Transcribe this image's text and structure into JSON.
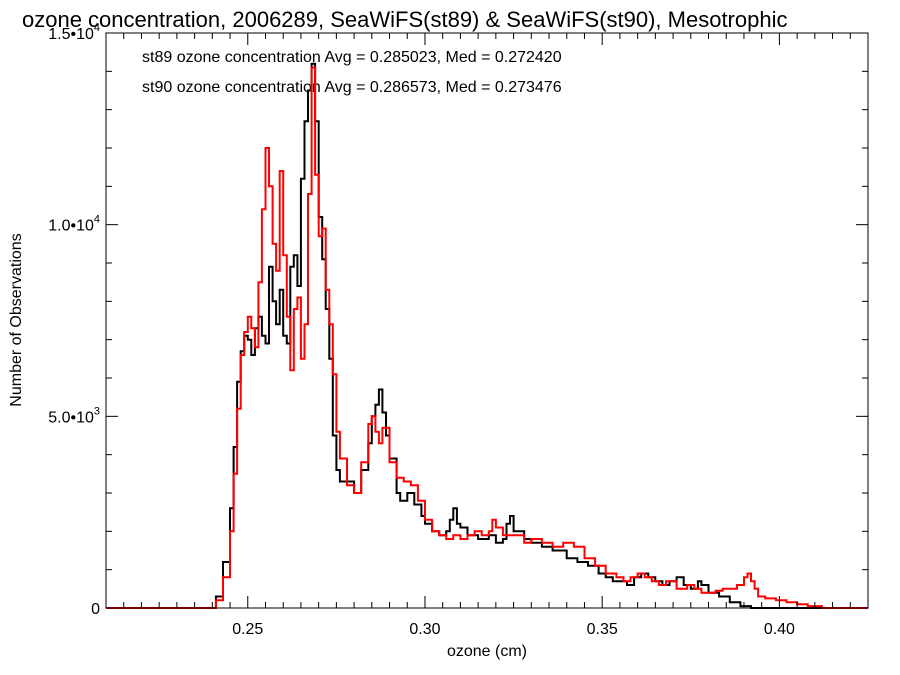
{
  "chart_data": {
    "type": "line",
    "title": "ozone concentration, 2006289, SeaWiFS(st89) & SeaWiFS(st90), Mesotrophic",
    "xlabel": "ozone (cm)",
    "ylabel": "Number of Observations",
    "xlim": [
      0.21,
      0.425
    ],
    "ylim": [
      0,
      15000
    ],
    "x_ticks": [
      {
        "value": 0.25,
        "label": "0.25"
      },
      {
        "value": 0.3,
        "label": "0.30"
      },
      {
        "value": 0.35,
        "label": "0.35"
      },
      {
        "value": 0.4,
        "label": "0.40"
      }
    ],
    "y_ticks": [
      {
        "value": 0,
        "mantissa": "0",
        "exp": ""
      },
      {
        "value": 5000,
        "mantissa": "5.0•10",
        "exp": "3"
      },
      {
        "value": 10000,
        "mantissa": "1.0•10",
        "exp": "4"
      },
      {
        "value": 15000,
        "mantissa": "1.5•10",
        "exp": "4"
      }
    ],
    "annotations": [
      {
        "text": "st89 ozone concentration Avg = 0.285023, Med = 0.272420",
        "color": "#000000"
      },
      {
        "text": "st90 ozone concentration Avg = 0.286573, Med = 0.273476",
        "color": "#ff0000"
      }
    ],
    "series": [
      {
        "color": "#000000",
        "points": [
          [
            0.21,
            0
          ],
          [
            0.238,
            0
          ],
          [
            0.241,
            300
          ],
          [
            0.243,
            1200
          ],
          [
            0.245,
            2600
          ],
          [
            0.246,
            4200
          ],
          [
            0.247,
            5900
          ],
          [
            0.248,
            6700
          ],
          [
            0.249,
            7100
          ],
          [
            0.25,
            7000
          ],
          [
            0.251,
            6600
          ],
          [
            0.252,
            7300
          ],
          [
            0.253,
            7600
          ],
          [
            0.254,
            7100
          ],
          [
            0.255,
            6900
          ],
          [
            0.256,
            8900
          ],
          [
            0.257,
            8000
          ],
          [
            0.258,
            7400
          ],
          [
            0.259,
            8300
          ],
          [
            0.26,
            7100
          ],
          [
            0.261,
            6900
          ],
          [
            0.262,
            8900
          ],
          [
            0.263,
            9200
          ],
          [
            0.264,
            8400
          ],
          [
            0.265,
            11200
          ],
          [
            0.266,
            12700
          ],
          [
            0.267,
            13500
          ],
          [
            0.268,
            14200
          ],
          [
            0.269,
            12700
          ],
          [
            0.27,
            10200
          ],
          [
            0.271,
            9100
          ],
          [
            0.272,
            7800
          ],
          [
            0.273,
            6500
          ],
          [
            0.274,
            4500
          ],
          [
            0.275,
            3600
          ],
          [
            0.276,
            3300
          ],
          [
            0.278,
            3300
          ],
          [
            0.28,
            3000
          ],
          [
            0.282,
            3600
          ],
          [
            0.284,
            4300
          ],
          [
            0.285,
            5000
          ],
          [
            0.286,
            5300
          ],
          [
            0.287,
            5700
          ],
          [
            0.288,
            5100
          ],
          [
            0.289,
            4500
          ],
          [
            0.29,
            3900
          ],
          [
            0.292,
            3000
          ],
          [
            0.293,
            2800
          ],
          [
            0.295,
            3000
          ],
          [
            0.297,
            2700
          ],
          [
            0.299,
            2400
          ],
          [
            0.3,
            2200
          ],
          [
            0.302,
            2000
          ],
          [
            0.304,
            1900
          ],
          [
            0.306,
            2000
          ],
          [
            0.307,
            2300
          ],
          [
            0.308,
            2600
          ],
          [
            0.309,
            2200
          ],
          [
            0.31,
            2100
          ],
          [
            0.312,
            1900
          ],
          [
            0.315,
            1800
          ],
          [
            0.318,
            1900
          ],
          [
            0.32,
            1700
          ],
          [
            0.322,
            1800
          ],
          [
            0.323,
            2200
          ],
          [
            0.324,
            2400
          ],
          [
            0.325,
            2000
          ],
          [
            0.328,
            1800
          ],
          [
            0.33,
            1700
          ],
          [
            0.333,
            1600
          ],
          [
            0.336,
            1500
          ],
          [
            0.34,
            1300
          ],
          [
            0.343,
            1200
          ],
          [
            0.346,
            1100
          ],
          [
            0.349,
            900
          ],
          [
            0.351,
            800
          ],
          [
            0.353,
            700
          ],
          [
            0.355,
            700
          ],
          [
            0.357,
            600
          ],
          [
            0.359,
            800
          ],
          [
            0.361,
            900
          ],
          [
            0.363,
            800
          ],
          [
            0.365,
            700
          ],
          [
            0.367,
            600
          ],
          [
            0.369,
            700
          ],
          [
            0.371,
            800
          ],
          [
            0.373,
            600
          ],
          [
            0.375,
            500
          ],
          [
            0.377,
            700
          ],
          [
            0.378,
            600
          ],
          [
            0.38,
            400
          ],
          [
            0.383,
            300
          ],
          [
            0.386,
            150
          ],
          [
            0.389,
            50
          ],
          [
            0.392,
            0
          ],
          [
            0.425,
            0
          ]
        ]
      },
      {
        "color": "#ff0000",
        "points": [
          [
            0.21,
            0
          ],
          [
            0.239,
            0
          ],
          [
            0.241,
            200
          ],
          [
            0.243,
            800
          ],
          [
            0.245,
            2000
          ],
          [
            0.246,
            3500
          ],
          [
            0.247,
            5200
          ],
          [
            0.248,
            6600
          ],
          [
            0.249,
            7200
          ],
          [
            0.25,
            7600
          ],
          [
            0.251,
            7300
          ],
          [
            0.252,
            6800
          ],
          [
            0.253,
            8500
          ],
          [
            0.254,
            10400
          ],
          [
            0.255,
            12000
          ],
          [
            0.256,
            11000
          ],
          [
            0.257,
            9500
          ],
          [
            0.258,
            8800
          ],
          [
            0.259,
            11400
          ],
          [
            0.26,
            9200
          ],
          [
            0.261,
            7600
          ],
          [
            0.262,
            6200
          ],
          [
            0.263,
            7800
          ],
          [
            0.264,
            8100
          ],
          [
            0.265,
            6500
          ],
          [
            0.266,
            7400
          ],
          [
            0.267,
            10800
          ],
          [
            0.268,
            14100
          ],
          [
            0.269,
            11300
          ],
          [
            0.27,
            9700
          ],
          [
            0.271,
            9900
          ],
          [
            0.272,
            8300
          ],
          [
            0.273,
            7400
          ],
          [
            0.274,
            6100
          ],
          [
            0.275,
            4600
          ],
          [
            0.276,
            3900
          ],
          [
            0.278,
            3200
          ],
          [
            0.28,
            3000
          ],
          [
            0.282,
            3800
          ],
          [
            0.284,
            4800
          ],
          [
            0.285,
            5000
          ],
          [
            0.286,
            4600
          ],
          [
            0.287,
            4300
          ],
          [
            0.288,
            4700
          ],
          [
            0.29,
            3800
          ],
          [
            0.292,
            3400
          ],
          [
            0.294,
            3300
          ],
          [
            0.296,
            3200
          ],
          [
            0.298,
            2800
          ],
          [
            0.3,
            2300
          ],
          [
            0.302,
            2000
          ],
          [
            0.304,
            1900
          ],
          [
            0.306,
            1800
          ],
          [
            0.308,
            1900
          ],
          [
            0.31,
            1800
          ],
          [
            0.312,
            1900
          ],
          [
            0.314,
            2000
          ],
          [
            0.316,
            1900
          ],
          [
            0.318,
            2000
          ],
          [
            0.319,
            2300
          ],
          [
            0.32,
            2100
          ],
          [
            0.322,
            1900
          ],
          [
            0.325,
            1900
          ],
          [
            0.328,
            1700
          ],
          [
            0.33,
            1800
          ],
          [
            0.333,
            1700
          ],
          [
            0.336,
            1600
          ],
          [
            0.339,
            1700
          ],
          [
            0.342,
            1600
          ],
          [
            0.345,
            1300
          ],
          [
            0.348,
            1100
          ],
          [
            0.351,
            900
          ],
          [
            0.354,
            800
          ],
          [
            0.356,
            700
          ],
          [
            0.358,
            800
          ],
          [
            0.36,
            900
          ],
          [
            0.362,
            800
          ],
          [
            0.364,
            700
          ],
          [
            0.366,
            600
          ],
          [
            0.368,
            700
          ],
          [
            0.371,
            500
          ],
          [
            0.374,
            600
          ],
          [
            0.376,
            500
          ],
          [
            0.378,
            400
          ],
          [
            0.38,
            400
          ],
          [
            0.382,
            450
          ],
          [
            0.384,
            500
          ],
          [
            0.386,
            500
          ],
          [
            0.388,
            600
          ],
          [
            0.39,
            800
          ],
          [
            0.391,
            900
          ],
          [
            0.392,
            700
          ],
          [
            0.393,
            500
          ],
          [
            0.394,
            300
          ],
          [
            0.396,
            250
          ],
          [
            0.399,
            200
          ],
          [
            0.402,
            150
          ],
          [
            0.405,
            100
          ],
          [
            0.408,
            50
          ],
          [
            0.412,
            0
          ],
          [
            0.425,
            0
          ]
        ]
      }
    ]
  }
}
